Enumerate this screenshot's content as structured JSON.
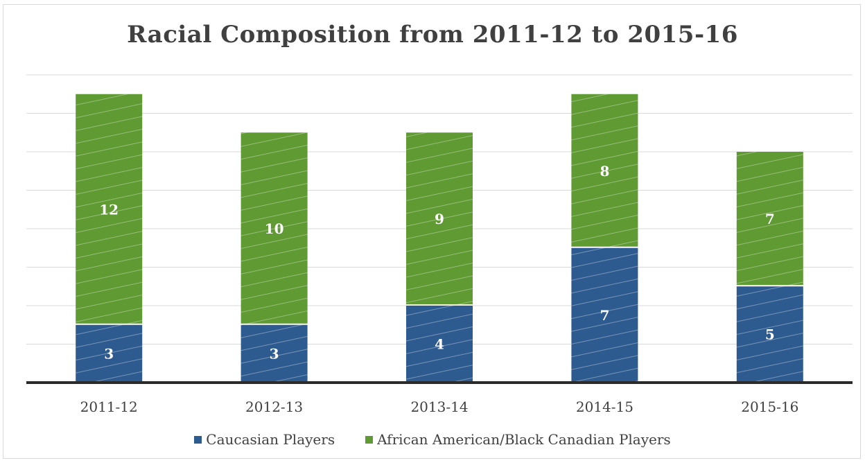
{
  "chart_data": {
    "type": "bar",
    "stacked": true,
    "title": "Racial Composition from 2011-12 to 2015-16",
    "xlabel": "",
    "ylabel": "",
    "categories": [
      "2011-12",
      "2012-13",
      "2013-14",
      "2014-15",
      "2015-16"
    ],
    "series": [
      {
        "name": "Caucasian Players",
        "values": [
          3,
          3,
          4,
          7,
          5
        ],
        "color": "#2e5b8f"
      },
      {
        "name": "African American/Black Canadian Players",
        "values": [
          12,
          10,
          9,
          8,
          7
        ],
        "color": "#5f9a32"
      }
    ],
    "ylim": [
      0,
      16
    ],
    "grid": true,
    "legend_position": "bottom"
  }
}
